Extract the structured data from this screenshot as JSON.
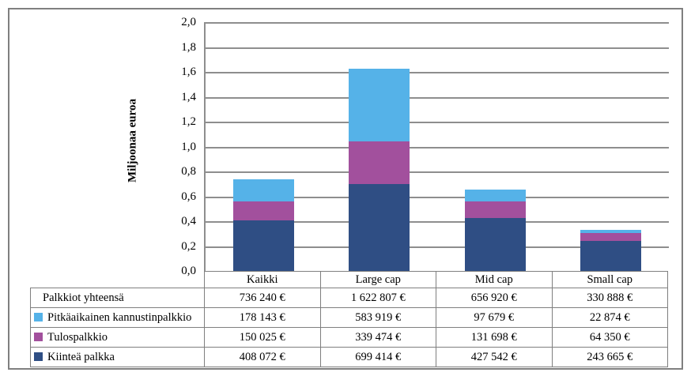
{
  "figure": {
    "y_axis": {
      "title": "Miljoonaa euroa",
      "ticks": [
        "2,0",
        "1,8",
        "1,6",
        "1,4",
        "1,2",
        "1,0",
        "0,8",
        "0,6",
        "0,4",
        "0,2",
        "0,0"
      ]
    }
  },
  "chart_data": {
    "type": "bar",
    "stacked": true,
    "categories": [
      "Kaikki",
      "Large cap",
      "Mid cap",
      "Small cap"
    ],
    "series": [
      {
        "name": "Kiinteä palkka",
        "color": "#2F4E84",
        "values": [
          0.408072,
          0.699414,
          0.427542,
          0.243665
        ]
      },
      {
        "name": "Tulospalkkio",
        "color": "#A2509D",
        "values": [
          0.150025,
          0.339474,
          0.131698,
          0.06435
        ]
      },
      {
        "name": "Pitkäaikainen kannustinpalkkio",
        "color": "#55B2E8",
        "values": [
          0.178143,
          0.583919,
          0.097679,
          0.022874
        ]
      }
    ],
    "totals": [
      0.73624,
      1.622807,
      0.65692,
      0.330888
    ],
    "title": "",
    "xlabel": "",
    "ylabel": "Miljoonaa euroa",
    "ylim": [
      0,
      2.0
    ],
    "ytick_step": 0.2,
    "grid": true,
    "legend_position": "data-table"
  },
  "data_table": {
    "header": [
      "",
      "Kaikki",
      "Large cap",
      "Mid cap",
      "Small cap"
    ],
    "rows": [
      {
        "label": "Palkkiot yhteensä",
        "swatch": null,
        "values": [
          "736 240 €",
          "1 622 807 €",
          "656 920 €",
          "330 888 €"
        ]
      },
      {
        "label": "Pitkäaikainen kannustinpalkkio",
        "swatch": "#55B2E8",
        "values": [
          "178 143 €",
          "583 919 €",
          "97 679 €",
          "22 874 €"
        ]
      },
      {
        "label": "Tulospalkkio",
        "swatch": "#A2509D",
        "values": [
          "150 025 €",
          "339 474 €",
          "131 698 €",
          "64 350 €"
        ]
      },
      {
        "label": "Kiinteä palkka",
        "swatch": "#2F4E84",
        "values": [
          "408 072 €",
          "699 414 €",
          "427 542 €",
          "243 665 €"
        ]
      }
    ]
  },
  "colors": {
    "gridline": "#8E8E8E",
    "table_border": "#7F7F7F",
    "frame_border": "#808080",
    "series_fixed_salary": "#2F4E84",
    "series_bonus": "#A2509D",
    "series_long_term_incentive": "#55B2E8"
  }
}
